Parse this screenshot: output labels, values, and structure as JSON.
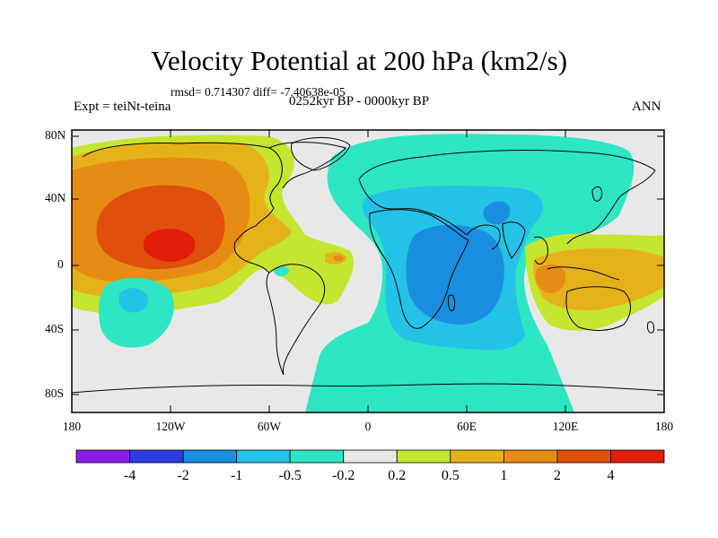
{
  "plot": {
    "title": "Velocity Potential at 200 hPa (km2/s)",
    "stats": "rmsd= 0.714307 diff= -7.40638e-05",
    "left_label": "Expt = teiNt-teina",
    "center_label": "0252kyr BP - 0000kyr BP",
    "right_label": "ANN"
  },
  "axes": {
    "y_labels": [
      "80N",
      "40N",
      "0",
      "40S",
      "80S"
    ],
    "x_labels": [
      "180",
      "120W",
      "60W",
      "0",
      "60E",
      "120E",
      "180"
    ],
    "lat_range": [
      -90,
      90
    ],
    "lon_range": [
      -180,
      180
    ]
  },
  "colorbar": {
    "labels": [
      "-4",
      "-2",
      "-1",
      "-0.5",
      "-0.2",
      "0.2",
      "0.5",
      "1",
      "2",
      "4"
    ],
    "colors": [
      "#8a1ee6",
      "#2c3ce0",
      "#1a8ee0",
      "#24c2e6",
      "#2ee6c4",
      "#e8e8e8",
      "#c4e62e",
      "#e6b21a",
      "#e68c14",
      "#e0500c",
      "#e01e0a"
    ]
  },
  "map": {
    "background_color": "#e8e8e8",
    "coast_color": "#000000"
  }
}
